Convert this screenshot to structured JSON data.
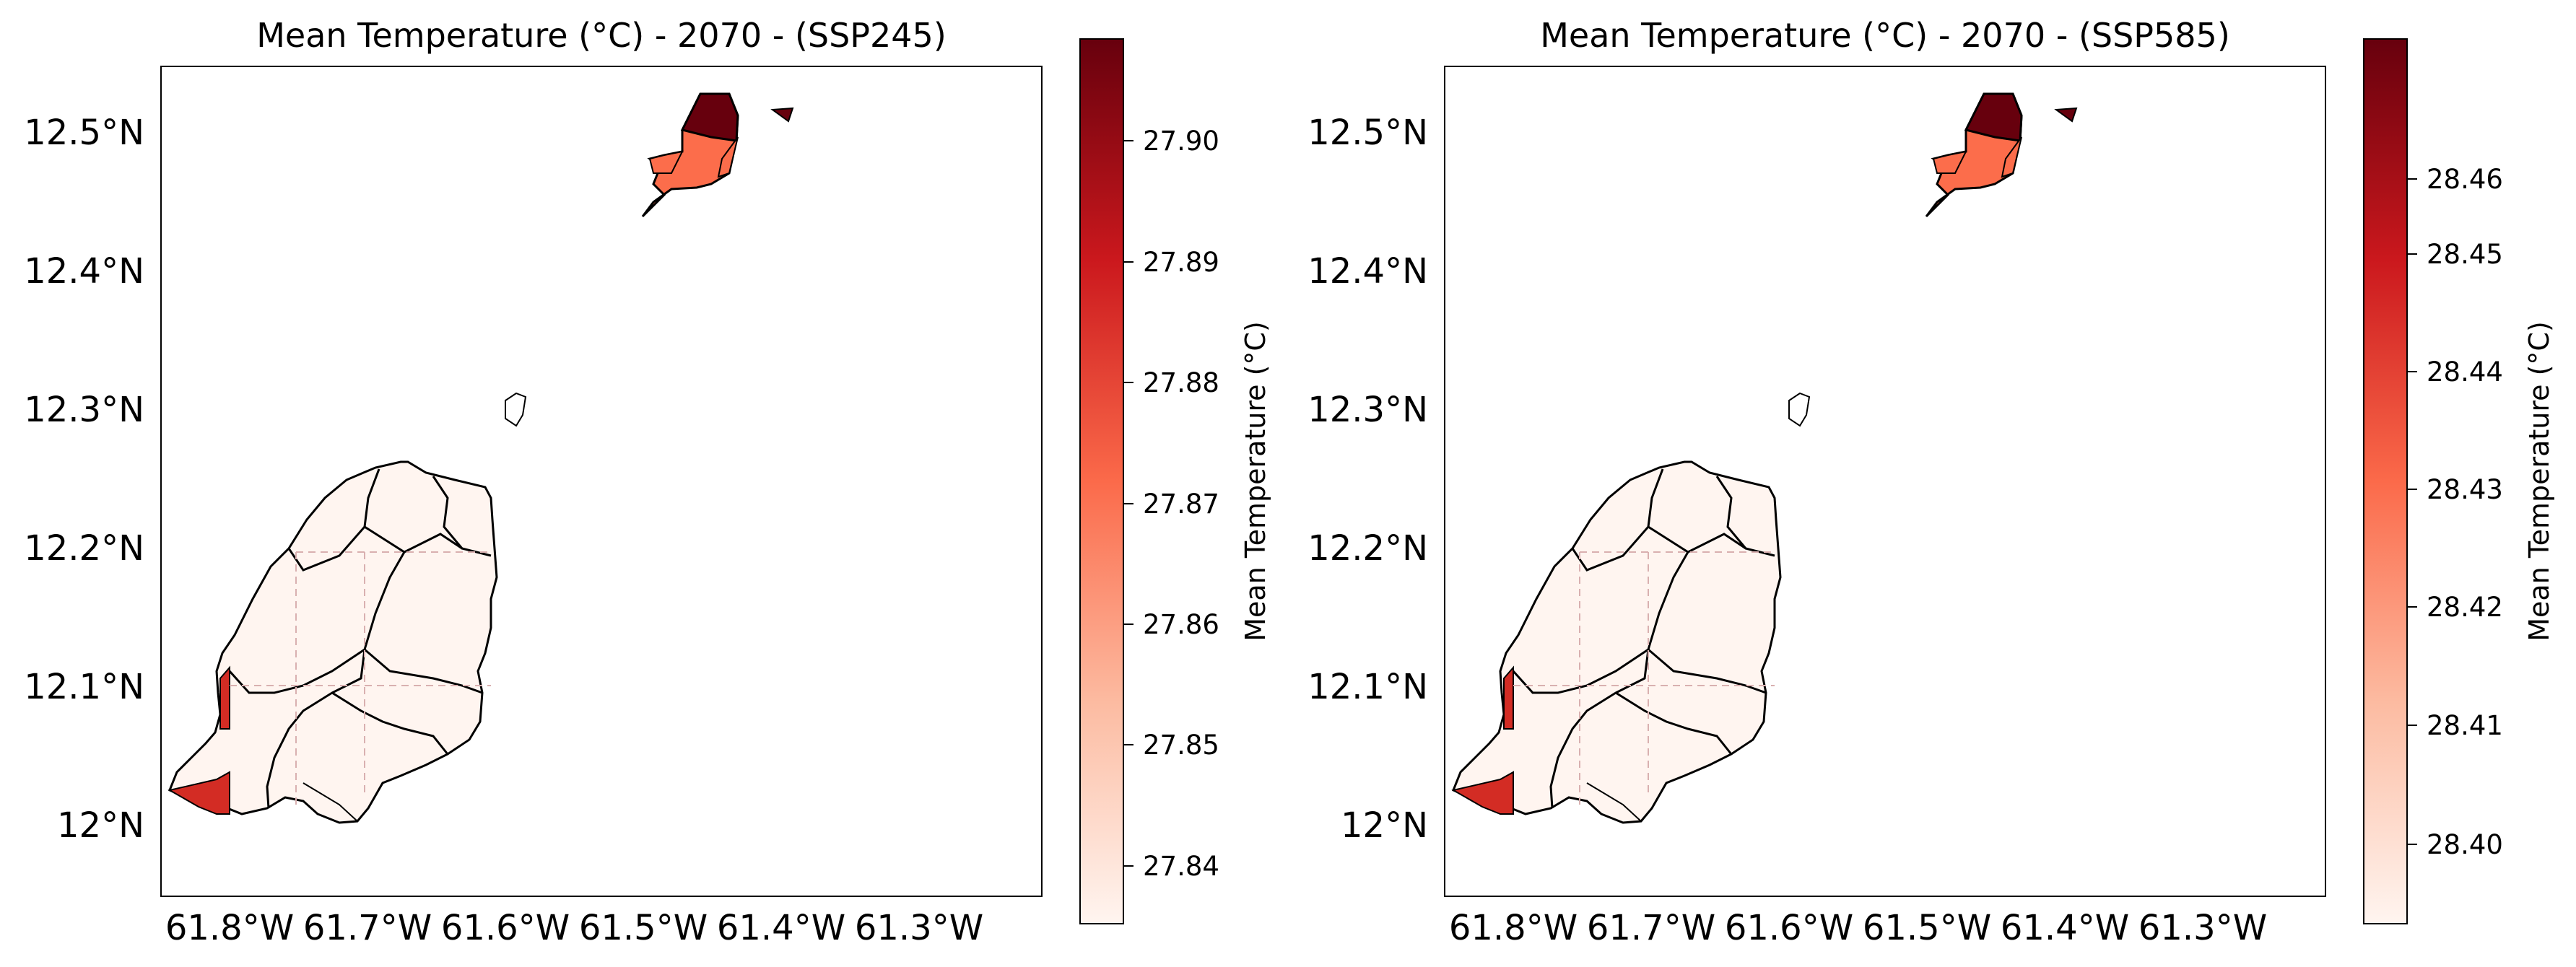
{
  "panels": [
    {
      "title": "Mean Temperature (°C) - 2070 - (SSP245)",
      "lat_ticks": [
        "12.5°N",
        "12.4°N",
        "12.3°N",
        "12.2°N",
        "12.1°N",
        "12°N"
      ],
      "lon_ticks": [
        "61.8°W",
        "61.7°W",
        "61.6°W",
        "61.5°W",
        "61.4°W",
        "61.3°W"
      ],
      "colorbar": {
        "label": "Mean Temperature (°C)",
        "ticks": [
          "27.90",
          "27.89",
          "27.88",
          "27.87",
          "27.86",
          "27.85",
          "27.84"
        ],
        "range": [
          27.835,
          27.908
        ]
      }
    },
    {
      "title": "Mean Temperature (°C) - 2070 - (SSP585)",
      "lat_ticks": [
        "12.5°N",
        "12.4°N",
        "12.3°N",
        "12.2°N",
        "12.1°N",
        "12°N"
      ],
      "lon_ticks": [
        "61.8°W",
        "61.7°W",
        "61.6°W",
        "61.5°W",
        "61.4°W",
        "61.3°W"
      ],
      "colorbar": {
        "label": "Mean Temperature (°C)",
        "ticks": [
          "28.46",
          "28.45",
          "28.44",
          "28.43",
          "28.42",
          "28.41",
          "28.40"
        ],
        "range": [
          28.393,
          28.468
        ]
      }
    }
  ],
  "colormap": "Reds",
  "colors": {
    "low": "#fff5f0",
    "mid": "#fc6d4b",
    "midlight": "#fd8d6c",
    "high": "#d32c24",
    "max": "#67000d",
    "outline": "#000000",
    "grid": "#d9b0b0"
  }
}
